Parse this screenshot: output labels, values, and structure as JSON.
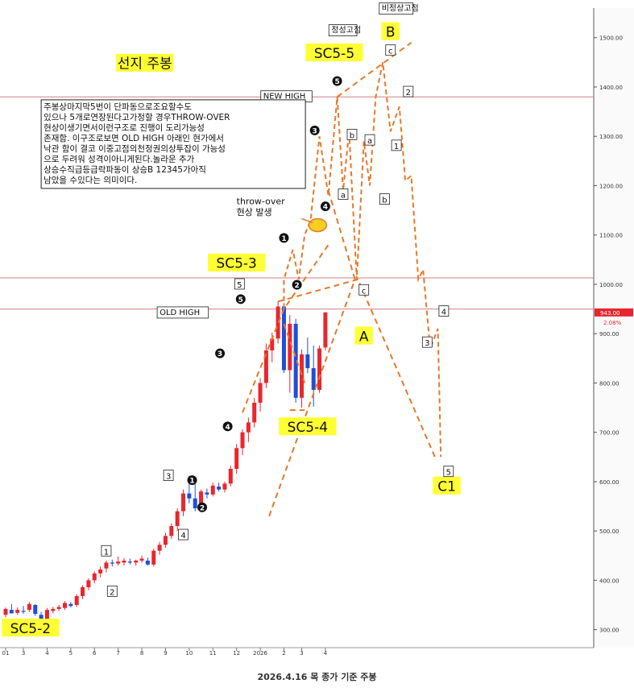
{
  "caption": "2026.4.16 목 종가 기준 주봉",
  "chart_data": {
    "type": "candlestick",
    "ylim": [
      270,
      1560
    ],
    "y_ticks": [
      "300.00",
      "400.00",
      "500.00",
      "600.00",
      "700.00",
      "800.00",
      "900.00",
      "1000.00",
      "1100.00",
      "1200.00",
      "1300.00",
      "1400.00",
      "1500.00"
    ],
    "x_ticks": [
      "01",
      "3",
      "4",
      "5",
      "6",
      "7",
      "8",
      "9",
      "10",
      "11",
      "12",
      "2026",
      "2",
      "3",
      "4"
    ],
    "price_label": {
      "value": "943.00",
      "change": "2.08%"
    },
    "candles": [
      {
        "o": 330,
        "h": 345,
        "l": 325,
        "c": 342
      },
      {
        "o": 340,
        "h": 352,
        "l": 335,
        "c": 333
      },
      {
        "o": 334,
        "h": 345,
        "l": 330,
        "c": 340
      },
      {
        "o": 338,
        "h": 348,
        "l": 332,
        "c": 336
      },
      {
        "o": 340,
        "h": 356,
        "l": 336,
        "c": 352
      },
      {
        "o": 350,
        "h": 352,
        "l": 328,
        "c": 332
      },
      {
        "o": 330,
        "h": 336,
        "l": 310,
        "c": 320
      },
      {
        "o": 322,
        "h": 344,
        "l": 318,
        "c": 340
      },
      {
        "o": 338,
        "h": 346,
        "l": 333,
        "c": 342
      },
      {
        "o": 342,
        "h": 350,
        "l": 338,
        "c": 346
      },
      {
        "o": 344,
        "h": 358,
        "l": 340,
        "c": 354
      },
      {
        "o": 352,
        "h": 356,
        "l": 345,
        "c": 348
      },
      {
        "o": 350,
        "h": 372,
        "l": 346,
        "c": 368
      },
      {
        "o": 368,
        "h": 390,
        "l": 362,
        "c": 386
      },
      {
        "o": 386,
        "h": 404,
        "l": 380,
        "c": 400
      },
      {
        "o": 400,
        "h": 418,
        "l": 394,
        "c": 414
      },
      {
        "o": 414,
        "h": 428,
        "l": 406,
        "c": 422
      },
      {
        "o": 424,
        "h": 440,
        "l": 416,
        "c": 436
      },
      {
        "o": 436,
        "h": 442,
        "l": 428,
        "c": 434
      },
      {
        "o": 434,
        "h": 448,
        "l": 430,
        "c": 438
      },
      {
        "o": 436,
        "h": 445,
        "l": 430,
        "c": 440
      },
      {
        "o": 438,
        "h": 444,
        "l": 432,
        "c": 436
      },
      {
        "o": 436,
        "h": 442,
        "l": 430,
        "c": 440
      },
      {
        "o": 440,
        "h": 450,
        "l": 436,
        "c": 444
      },
      {
        "o": 440,
        "h": 446,
        "l": 430,
        "c": 432
      },
      {
        "o": 432,
        "h": 464,
        "l": 428,
        "c": 460
      },
      {
        "o": 460,
        "h": 478,
        "l": 452,
        "c": 472
      },
      {
        "o": 472,
        "h": 496,
        "l": 466,
        "c": 490
      },
      {
        "o": 490,
        "h": 516,
        "l": 484,
        "c": 510
      },
      {
        "o": 510,
        "h": 546,
        "l": 500,
        "c": 540
      },
      {
        "o": 540,
        "h": 584,
        "l": 530,
        "c": 576
      },
      {
        "o": 576,
        "h": 612,
        "l": 556,
        "c": 566
      },
      {
        "o": 566,
        "h": 604,
        "l": 540,
        "c": 546
      },
      {
        "o": 546,
        "h": 584,
        "l": 538,
        "c": 580
      },
      {
        "o": 578,
        "h": 586,
        "l": 566,
        "c": 574
      },
      {
        "o": 574,
        "h": 598,
        "l": 570,
        "c": 592
      },
      {
        "o": 590,
        "h": 598,
        "l": 580,
        "c": 584
      },
      {
        "o": 584,
        "h": 600,
        "l": 578,
        "c": 596
      },
      {
        "o": 596,
        "h": 632,
        "l": 590,
        "c": 626
      },
      {
        "o": 626,
        "h": 676,
        "l": 616,
        "c": 668
      },
      {
        "o": 668,
        "h": 706,
        "l": 654,
        "c": 700
      },
      {
        "o": 700,
        "h": 730,
        "l": 680,
        "c": 720
      },
      {
        "o": 720,
        "h": 770,
        "l": 710,
        "c": 760
      },
      {
        "o": 760,
        "h": 810,
        "l": 742,
        "c": 800
      },
      {
        "o": 800,
        "h": 880,
        "l": 790,
        "c": 866
      },
      {
        "o": 866,
        "h": 902,
        "l": 842,
        "c": 890
      },
      {
        "o": 890,
        "h": 965,
        "l": 880,
        "c": 955
      },
      {
        "o": 955,
        "h": 962,
        "l": 820,
        "c": 826
      },
      {
        "o": 826,
        "h": 938,
        "l": 780,
        "c": 920
      },
      {
        "o": 920,
        "h": 930,
        "l": 760,
        "c": 770
      },
      {
        "o": 770,
        "h": 868,
        "l": 750,
        "c": 858
      },
      {
        "o": 858,
        "h": 892,
        "l": 820,
        "c": 830
      },
      {
        "o": 830,
        "h": 876,
        "l": 752,
        "c": 786
      },
      {
        "o": 786,
        "h": 876,
        "l": 780,
        "c": 870
      },
      {
        "o": 872,
        "h": 944,
        "l": 866,
        "c": 943
      }
    ],
    "hlines": [
      {
        "y": 1380,
        "label": "NEW HIGH",
        "color": "#d08080"
      },
      {
        "y": 1013,
        "label": "",
        "color": "#d08080"
      },
      {
        "y": 950,
        "label": "OLD HIGH",
        "color": "#d08080"
      }
    ],
    "projection_path": [
      [
        47,
        950
      ],
      [
        47,
        1010
      ],
      [
        48.5,
        1070
      ],
      [
        49.5,
        1010
      ],
      [
        50.5,
        1100
      ],
      [
        51.5,
        1130
      ],
      [
        53,
        1300
      ],
      [
        54.5,
        1180
      ],
      [
        56,
        1380
      ],
      [
        57,
        1190
      ],
      [
        58,
        1310
      ],
      [
        59.3,
        1010
      ],
      [
        60.5,
        1290
      ],
      [
        61.5,
        1200
      ],
      [
        62.5,
        1380
      ],
      [
        63.7,
        1450
      ],
      [
        65,
        1310
      ],
      [
        66.5,
        1360
      ],
      [
        67.5,
        1210
      ],
      [
        68.5,
        1220
      ],
      [
        69.7,
        1010
      ],
      [
        70.5,
        1030
      ],
      [
        71.7,
        870
      ],
      [
        73,
        910
      ],
      [
        73.5,
        650
      ]
    ],
    "trendlines": [
      [
        [
          40,
          740
        ],
        [
          47,
          950
        ],
        [
          54.5,
          1080
        ]
      ],
      [
        [
          44.5,
          530
        ],
        [
          59,
          1010
        ]
      ],
      [
        [
          56,
          1380
        ],
        [
          68.5,
          1490
        ]
      ],
      [
        [
          46,
          965
        ],
        [
          59.5,
          1010
        ],
        [
          72.5,
          650
        ]
      ],
      [
        [
          54.5,
          1190
        ],
        [
          59,
          1010
        ]
      ],
      [
        [
          48,
          745
        ],
        [
          50.5,
          745
        ]
      ],
      [
        [
          47,
          920
        ],
        [
          50.5,
          800
        ]
      ]
    ],
    "ellipse": {
      "x": 52.7,
      "y": 1120
    },
    "label_boxes": [
      {
        "text": "SC5-2",
        "x": 4.2,
        "y": 300,
        "size": 17
      },
      {
        "text": "SC5-3",
        "x": 39,
        "y": 1040,
        "size": 17
      },
      {
        "text": "SC5-4",
        "x": 51,
        "y": 708,
        "size": 17
      },
      {
        "text": "SC5-5",
        "x": 55.5,
        "y": 1466,
        "size": 17
      },
      {
        "text": "선지 주봉",
        "x": 23.5,
        "y": 1445,
        "size": 17
      },
      {
        "text": "A",
        "x": 60.5,
        "y": 892,
        "size": 17
      },
      {
        "text": "B",
        "x": 65,
        "y": 1509,
        "size": 17
      },
      {
        "text": "C1",
        "x": 74.5,
        "y": 588,
        "size": 17
      }
    ],
    "box_labels": [
      {
        "text": "1",
        "x": 17,
        "y": 459
      },
      {
        "text": "2",
        "x": 18,
        "y": 377
      },
      {
        "text": "3",
        "x": 27.5,
        "y": 612
      },
      {
        "text": "4",
        "x": 30,
        "y": 492
      },
      {
        "text": "5",
        "x": 39.5,
        "y": 1000
      },
      {
        "text": "a",
        "x": 57,
        "y": 1182
      },
      {
        "text": "b",
        "x": 58.5,
        "y": 1303
      },
      {
        "text": "c",
        "x": 60.5,
        "y": 988
      },
      {
        "text": "a",
        "x": 61.5,
        "y": 1292
      },
      {
        "text": "b",
        "x": 64,
        "y": 1172
      },
      {
        "text": "c",
        "x": 65,
        "y": 1474
      },
      {
        "text": "1",
        "x": 66,
        "y": 1281
      },
      {
        "text": "2",
        "x": 68,
        "y": 1390
      },
      {
        "text": "3",
        "x": 71.2,
        "y": 882
      },
      {
        "text": "4",
        "x": 74,
        "y": 945
      },
      {
        "text": "5",
        "x": 74.8,
        "y": 620
      }
    ],
    "circle_labels": [
      {
        "text": "1",
        "x": 31.5,
        "y": 603
      },
      {
        "text": "2",
        "x": 33.2,
        "y": 548
      },
      {
        "text": "3",
        "x": 36.2,
        "y": 860
      },
      {
        "text": "4",
        "x": 37.5,
        "y": 712
      },
      {
        "text": "5",
        "x": 39.7,
        "y": 970
      },
      {
        "text": "1",
        "x": 47,
        "y": 1094
      },
      {
        "text": "2",
        "x": 49.2,
        "y": 999
      },
      {
        "text": "3",
        "x": 52.2,
        "y": 1312
      },
      {
        "text": "4",
        "x": 54,
        "y": 1158
      },
      {
        "text": "5",
        "x": 56,
        "y": 1412
      }
    ],
    "text_labels": [
      {
        "text": "OLD HIGH",
        "x": 26,
        "y": 938,
        "boxed": true,
        "size": 10
      },
      {
        "text": "NEW HIGH",
        "x": 43.5,
        "y": 1376,
        "boxed": true,
        "size": 10
      },
      {
        "text": "정성고점",
        "x": 55,
        "y": 1510,
        "boxed": true,
        "size": 10
      },
      {
        "text": "비정상고점",
        "x": 63.5,
        "y": 1554,
        "boxed": true,
        "size": 10
      },
      {
        "text": "throw-over",
        "x": 39,
        "y": 1162,
        "boxed": false,
        "size": 11
      },
      {
        "text": "현상 발생",
        "x": 39,
        "y": 1140,
        "boxed": false,
        "size": 11
      }
    ],
    "note": {
      "x": 6,
      "y": 1374,
      "lines": [
        "주봉상마지막5번이 단파동으로조요할수도",
        "있으나 5개로연장된다고가정할 경우THROW-OVER",
        "현상이생기면서이런구조로 진행이 도리가능성",
        "존재함. 이구조로보면 OLD HIGH 아래인 현가에서",
        "낙관 함이 결코 이중고점의천정권의상투잡이 가능성",
        "으로 두려워 성격이아니게된다.놀라운 추가",
        "상승수직급등급락파동이 상승B 12345가아직",
        "남았을 수있다는 의미이다."
      ]
    }
  }
}
